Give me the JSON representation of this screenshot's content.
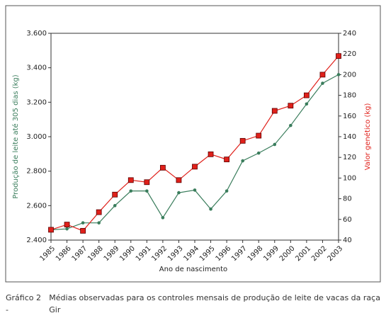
{
  "chart_data": {
    "type": "line",
    "x_label": "Ano de nascimento",
    "y_label": "Produção de leite até 305 dias (kg)",
    "y2_label": "Valor genético (kg)",
    "caption_label": "Gráfico 2 -",
    "caption": "Médias observadas para os controles mensais de produção de leite de vacas da raça Gir",
    "categories": [
      "1985",
      "1986",
      "1987",
      "1988",
      "1989",
      "1990",
      "1991",
      "1992",
      "1993",
      "1994",
      "1995",
      "1996",
      "1997",
      "1998",
      "1999",
      "2000",
      "2001",
      "2002",
      "2003"
    ],
    "ylim": [
      2400,
      3600
    ],
    "yticks": [
      {
        "value": 2400,
        "label": "2.400"
      },
      {
        "value": 2600,
        "label": "2.600"
      },
      {
        "value": 2800,
        "label": "2.800"
      },
      {
        "value": 3000,
        "label": "3.000"
      },
      {
        "value": 3200,
        "label": "3.200"
      },
      {
        "value": 3400,
        "label": "3.400"
      },
      {
        "value": 3600,
        "label": "3.600"
      }
    ],
    "y2lim": [
      40,
      240
    ],
    "y2ticks": [
      40,
      60,
      80,
      100,
      120,
      140,
      160,
      180,
      200,
      220,
      240
    ],
    "series": [
      {
        "name": "Produção de leite",
        "color": "#3a7d5c",
        "marker": "circle",
        "values": [
          2460,
          2465,
          2500,
          2500,
          2600,
          2685,
          2685,
          2530,
          2675,
          2690,
          2580,
          2685,
          2860,
          2905,
          2955,
          3065,
          3190,
          3310,
          3360
        ]
      },
      {
        "name": "Valor genético",
        "color": "#e0201a",
        "marker": "square",
        "axis": "y2",
        "values": [
          50,
          55,
          49,
          67,
          84,
          98,
          96,
          110,
          98,
          111,
          123,
          118,
          136,
          141,
          165,
          170,
          180,
          200,
          218
        ]
      }
    ]
  }
}
